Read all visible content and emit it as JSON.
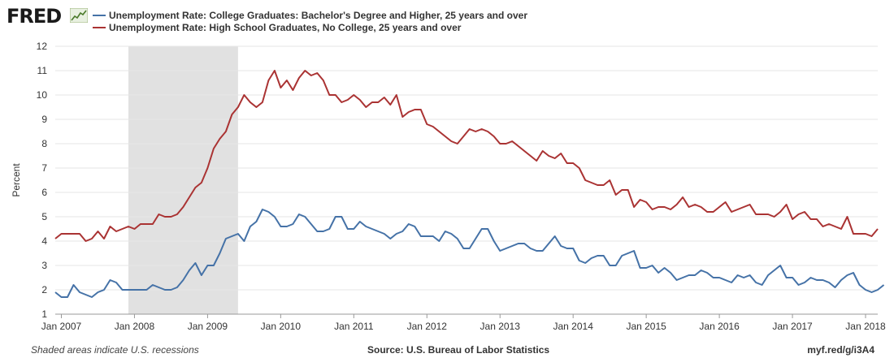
{
  "header": {
    "logo_text": "FRED",
    "logo_mark_icon": "fred-sparkline-icon"
  },
  "chart_data": {
    "type": "line",
    "title": "",
    "xlabel": "",
    "ylabel": "Percent",
    "ylim": [
      1,
      12
    ],
    "yticks": [
      "1",
      "2",
      "3",
      "4",
      "5",
      "6",
      "7",
      "8",
      "9",
      "10",
      "11",
      "12"
    ],
    "xlim": [
      "2006-12",
      "2018-03"
    ],
    "xticks": [
      {
        "label": "Jan 2007",
        "date": "2007-01"
      },
      {
        "label": "Jan 2008",
        "date": "2008-01"
      },
      {
        "label": "Jan 2009",
        "date": "2009-01"
      },
      {
        "label": "Jan 2010",
        "date": "2010-01"
      },
      {
        "label": "Jan 2011",
        "date": "2011-01"
      },
      {
        "label": "Jan 2012",
        "date": "2012-01"
      },
      {
        "label": "Jan 2013",
        "date": "2013-01"
      },
      {
        "label": "Jan 2014",
        "date": "2014-01"
      },
      {
        "label": "Jan 2015",
        "date": "2015-01"
      },
      {
        "label": "Jan 2016",
        "date": "2016-01"
      },
      {
        "label": "Jan 2017",
        "date": "2017-01"
      },
      {
        "label": "Jan 2018",
        "date": "2018-01"
      }
    ],
    "grid": true,
    "legend_position": "top",
    "recession": {
      "start": "2007-12",
      "end": "2009-06"
    },
    "series": [
      {
        "name": "Unemployment Rate: College Graduates: Bachelor's Degree and Higher, 25 years and over",
        "color": "#4572a7",
        "start": "2006-12",
        "values": [
          1.9,
          1.7,
          1.7,
          2.2,
          1.9,
          1.8,
          1.7,
          1.9,
          2.0,
          2.4,
          2.3,
          2.0,
          2.0,
          2.0,
          2.0,
          2.0,
          2.2,
          2.1,
          2.0,
          2.0,
          2.1,
          2.4,
          2.8,
          3.1,
          2.6,
          3.0,
          3.0,
          3.5,
          4.1,
          4.2,
          4.3,
          4.0,
          4.6,
          4.8,
          5.3,
          5.2,
          5.0,
          4.6,
          4.6,
          4.7,
          5.1,
          5.0,
          4.7,
          4.4,
          4.4,
          4.5,
          5.0,
          5.0,
          4.5,
          4.5,
          4.8,
          4.6,
          4.5,
          4.4,
          4.3,
          4.1,
          4.3,
          4.4,
          4.7,
          4.6,
          4.2,
          4.2,
          4.2,
          4.0,
          4.4,
          4.3,
          4.1,
          3.7,
          3.7,
          4.1,
          4.5,
          4.5,
          4.0,
          3.6,
          3.7,
          3.8,
          3.9,
          3.9,
          3.7,
          3.6,
          3.6,
          3.9,
          4.2,
          3.8,
          3.7,
          3.7,
          3.2,
          3.1,
          3.3,
          3.4,
          3.4,
          3.0,
          3.0,
          3.4,
          3.5,
          3.6,
          2.9,
          2.9,
          3.0,
          2.7,
          2.9,
          2.7,
          2.4,
          2.5,
          2.6,
          2.6,
          2.8,
          2.7,
          2.5,
          2.5,
          2.4,
          2.3,
          2.6,
          2.5,
          2.6,
          2.3,
          2.2,
          2.6,
          2.8,
          3.0,
          2.5,
          2.5,
          2.2,
          2.3,
          2.5,
          2.4,
          2.4,
          2.3,
          2.1,
          2.4,
          2.6,
          2.7,
          2.2,
          2.0,
          1.9,
          2.0,
          2.2
        ]
      },
      {
        "name": "Unemployment Rate: High School Graduates, No College, 25 years and over",
        "color": "#aa3333",
        "start": "2006-12",
        "values": [
          4.1,
          4.3,
          4.3,
          4.3,
          4.3,
          4.0,
          4.1,
          4.4,
          4.1,
          4.6,
          4.4,
          4.5,
          4.6,
          4.5,
          4.7,
          4.7,
          4.7,
          5.1,
          5.0,
          5.0,
          5.1,
          5.4,
          5.8,
          6.2,
          6.4,
          7.0,
          7.8,
          8.2,
          8.5,
          9.2,
          9.5,
          10.0,
          9.7,
          9.5,
          9.7,
          10.6,
          11.0,
          10.3,
          10.6,
          10.2,
          10.7,
          11.0,
          10.8,
          10.9,
          10.6,
          10.0,
          10.0,
          9.7,
          9.8,
          10.0,
          9.8,
          9.5,
          9.7,
          9.7,
          9.9,
          9.6,
          10.0,
          9.1,
          9.3,
          9.4,
          9.4,
          8.8,
          8.7,
          8.5,
          8.3,
          8.1,
          8.0,
          8.3,
          8.6,
          8.5,
          8.6,
          8.5,
          8.3,
          8.0,
          8.0,
          8.1,
          7.9,
          7.7,
          7.5,
          7.3,
          7.7,
          7.5,
          7.4,
          7.6,
          7.2,
          7.2,
          7.0,
          6.5,
          6.4,
          6.3,
          6.3,
          6.5,
          5.9,
          6.1,
          6.1,
          5.4,
          5.7,
          5.6,
          5.3,
          5.4,
          5.4,
          5.3,
          5.5,
          5.8,
          5.4,
          5.5,
          5.4,
          5.2,
          5.2,
          5.4,
          5.6,
          5.2,
          5.3,
          5.4,
          5.5,
          5.1,
          5.1,
          5.1,
          5.0,
          5.2,
          5.5,
          4.9,
          5.1,
          5.2,
          4.9,
          4.9,
          4.6,
          4.7,
          4.6,
          4.5,
          5.0,
          4.3,
          4.3,
          4.3,
          4.2,
          4.5
        ]
      }
    ]
  },
  "footer": {
    "note": "Shaded areas indicate U.S. recessions",
    "source": "Source: U.S. Bureau of Labor Statistics",
    "url": "myf.red/g/i3A4"
  }
}
